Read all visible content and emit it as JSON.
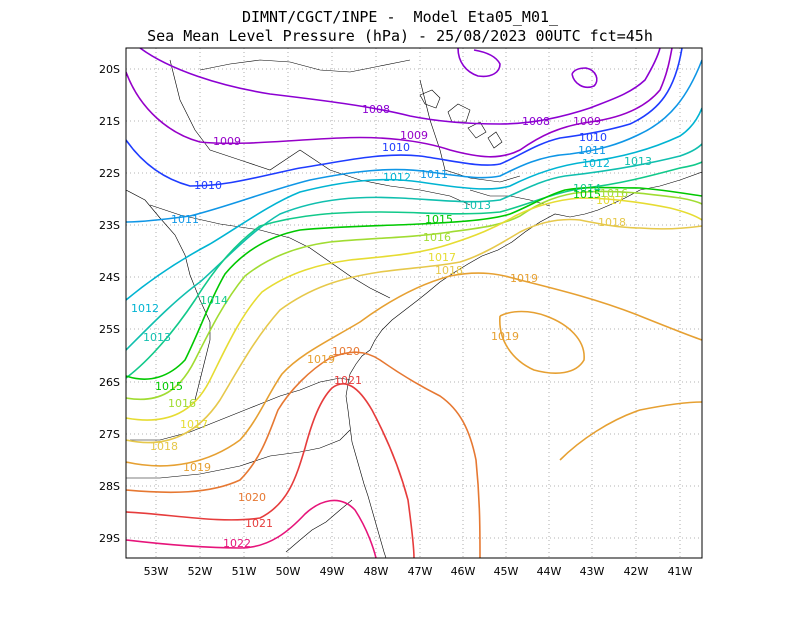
{
  "title": {
    "line1": "DIMNT/CGCT/INPE -  Model Eta05_M01_",
    "line2": "Sea Mean Level Pressure (hPa) - 25/08/2023 00UTC fct=45h"
  },
  "axes": {
    "lon_labels": [
      "53W",
      "52W",
      "51W",
      "50W",
      "49W",
      "48W",
      "47W",
      "46W",
      "45W",
      "44W",
      "43W",
      "42W",
      "41W"
    ],
    "lat_labels": [
      "20S",
      "21S",
      "22S",
      "23S",
      "24S",
      "25S",
      "26S",
      "27S",
      "28S",
      "29S"
    ]
  },
  "isobars": [
    {
      "value": 1008,
      "color": "#8c00d2",
      "labels": [
        "1008",
        "1008"
      ]
    },
    {
      "value": 1009,
      "color": "#9600c8",
      "labels": [
        "1009",
        "1009",
        "1009"
      ]
    },
    {
      "value": 1010,
      "color": "#1e3cff",
      "labels": [
        "1010",
        "1010",
        "1010"
      ]
    },
    {
      "value": 1011,
      "color": "#0f96e6",
      "labels": [
        "1011",
        "1011",
        "1011"
      ]
    },
    {
      "value": 1012,
      "color": "#00b4d2",
      "labels": [
        "1012",
        "1012",
        "1012"
      ]
    },
    {
      "value": 1013,
      "color": "#10bfae",
      "labels": [
        "1013",
        "1013",
        "1013"
      ]
    },
    {
      "value": 1014,
      "color": "#11c98a",
      "labels": [
        "1014",
        "1014"
      ]
    },
    {
      "value": 1015,
      "color": "#00c800",
      "labels": [
        "1015",
        "1015",
        "1015"
      ]
    },
    {
      "value": 1016,
      "color": "#a0dc32",
      "labels": [
        "1016",
        "1016",
        "1016"
      ]
    },
    {
      "value": 1017,
      "color": "#e6dc32",
      "labels": [
        "1017",
        "1017",
        "1017"
      ]
    },
    {
      "value": 1018,
      "color": "#e6c84b",
      "labels": [
        "1018",
        "1018",
        "1018"
      ]
    },
    {
      "value": 1019,
      "color": "#e6a032",
      "labels": [
        "1019",
        "1019",
        "1019",
        "1019"
      ]
    },
    {
      "value": 1020,
      "color": "#e67832",
      "labels": [
        "1020",
        "1020"
      ]
    },
    {
      "value": 1021,
      "color": "#e63c3c",
      "labels": [
        "1021",
        "1021"
      ]
    },
    {
      "value": 1022,
      "color": "#e6147a",
      "labels": [
        "1022"
      ]
    }
  ]
}
